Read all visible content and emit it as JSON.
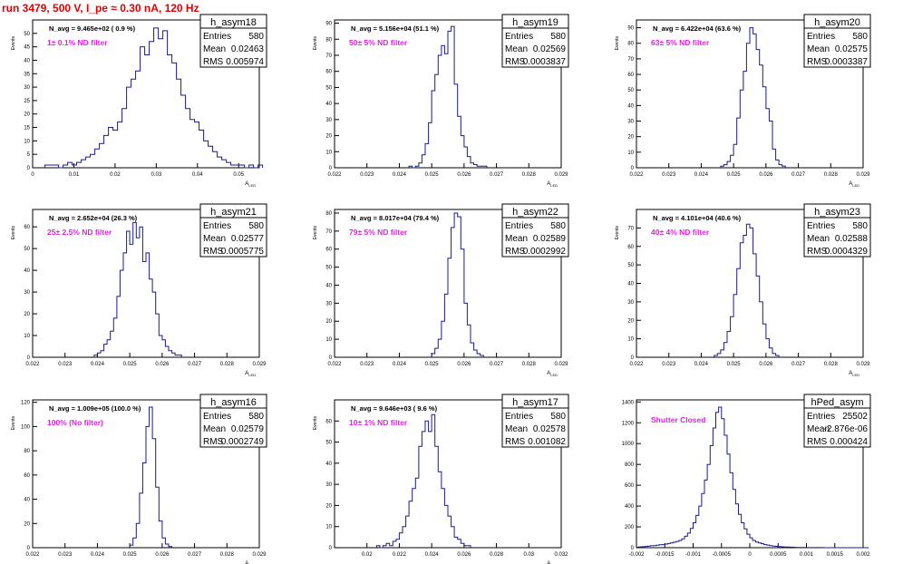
{
  "header": {
    "title": "run 3479,   500 V, I_pe ≈ 0.30 nA, 120 Hz"
  },
  "chart_data": [
    {
      "type": "bar",
      "name": "h_asym18",
      "nav": "N_avg = 9.465e+02 ( 0.9 %)",
      "note": "1± 0.1% ND filter",
      "stats": {
        "entries_label": "Entries",
        "entries": "580",
        "mean_label": "Mean",
        "mean": "0.02463",
        "rms_label": "RMS",
        "rms": "0.005974"
      },
      "xlabel": "A_LED",
      "ylabel": "Events",
      "xlim": [
        0,
        0.055
      ],
      "ylim": [
        0,
        55
      ],
      "xticks": [
        "0",
        "0.01",
        "0.02",
        "0.03",
        "0.04",
        "0.05"
      ],
      "yticks": [
        0,
        5,
        10,
        15,
        20,
        25,
        30,
        35,
        40,
        45,
        50
      ],
      "bins": {
        "lo": 0.003,
        "width": 0.0011,
        "counts": [
          1,
          1,
          1,
          0,
          1,
          2,
          1,
          2,
          3,
          4,
          5,
          7,
          9,
          12,
          15,
          14,
          17,
          22,
          30,
          33,
          36,
          45,
          42,
          47,
          52,
          48,
          51,
          42,
          39,
          33,
          27,
          22,
          18,
          17,
          14,
          10,
          8,
          6,
          4,
          3,
          2,
          1,
          1,
          1,
          0,
          1,
          0,
          1
        ]
      }
    },
    {
      "type": "bar",
      "name": "h_asym19",
      "nav": "N_avg = 5.156e+04 (51.1 %)",
      "note": "50± 5% ND filter",
      "stats": {
        "entries_label": "Entries",
        "entries": "580",
        "mean_label": "Mean",
        "mean": "0.02569",
        "rms_label": "RMS",
        "rms": "0.0003837"
      },
      "xlabel": "A_LED",
      "ylabel": "Events",
      "xlim": [
        0.022,
        0.029
      ],
      "ylim": [
        0,
        92
      ],
      "xticks": [
        "0.022",
        "0.023",
        "0.024",
        "0.025",
        "0.026",
        "0.027",
        "0.028",
        "0.029"
      ],
      "yticks": [
        0,
        10,
        20,
        30,
        40,
        50,
        60,
        70,
        80,
        90
      ],
      "bins": {
        "lo": 0.0243,
        "width": 0.0001,
        "counts": [
          1,
          0,
          1,
          3,
          8,
          15,
          28,
          48,
          58,
          70,
          76,
          71,
          85,
          88,
          52,
          32,
          20,
          13,
          7,
          3,
          2,
          1,
          1,
          1
        ]
      }
    },
    {
      "type": "bar",
      "name": "h_asym20",
      "nav": "N_avg = 6.422e+04 (63.6 %)",
      "note": "63± 5% ND filter",
      "stats": {
        "entries_label": "Entries",
        "entries": "580",
        "mean_label": "Mean",
        "mean": "0.02575",
        "rms_label": "RMS",
        "rms": "0.0003387"
      },
      "xlabel": "A_LED",
      "ylabel": "Events",
      "xlim": [
        0.022,
        0.029
      ],
      "ylim": [
        0,
        95
      ],
      "xticks": [
        "0.022",
        "0.023",
        "0.024",
        "0.025",
        "0.026",
        "0.027",
        "0.028",
        "0.029"
      ],
      "yticks": [
        0,
        10,
        20,
        30,
        40,
        50,
        60,
        70,
        80,
        90
      ],
      "bins": {
        "lo": 0.0246,
        "width": 0.0001,
        "counts": [
          1,
          2,
          4,
          8,
          15,
          32,
          50,
          62,
          80,
          90,
          86,
          76,
          66,
          52,
          38,
          30,
          12,
          5,
          2,
          1
        ]
      }
    },
    {
      "type": "bar",
      "name": "h_asym21",
      "nav": "N_avg = 2.652e+04 (26.3 %)",
      "note": "25± 2.5% ND filter",
      "stats": {
        "entries_label": "Entries",
        "entries": "580",
        "mean_label": "Mean",
        "mean": "0.02577",
        "rms_label": "RMS",
        "rms": "0.0005775"
      },
      "xlabel": "A_LED",
      "ylabel": "Events",
      "xlim": [
        0.022,
        0.029
      ],
      "ylim": [
        0,
        68
      ],
      "xticks": [
        "0.022",
        "0.023",
        "0.024",
        "0.025",
        "0.026",
        "0.027",
        "0.028",
        "0.029"
      ],
      "yticks": [
        0,
        10,
        20,
        30,
        40,
        50,
        60
      ],
      "bins": {
        "lo": 0.0239,
        "width": 0.0001,
        "counts": [
          1,
          2,
          3,
          6,
          8,
          12,
          18,
          28,
          40,
          48,
          58,
          52,
          62,
          55,
          60,
          44,
          48,
          36,
          30,
          20,
          10,
          8,
          5,
          3,
          2,
          1,
          1
        ]
      }
    },
    {
      "type": "bar",
      "name": "h_asym22",
      "nav": "N_avg = 8.017e+04 (79.4 %)",
      "note": "79± 5% ND filter",
      "stats": {
        "entries_label": "Entries",
        "entries": "580",
        "mean_label": "Mean",
        "mean": "0.02589",
        "rms_label": "RMS",
        "rms": "0.0002992"
      },
      "xlabel": "A_LED",
      "ylabel": "Events",
      "xlim": [
        0.022,
        0.029
      ],
      "ylim": [
        0,
        82
      ],
      "xticks": [
        "0.022",
        "0.023",
        "0.024",
        "0.025",
        "0.026",
        "0.027",
        "0.028",
        "0.029"
      ],
      "yticks": [
        0,
        10,
        20,
        30,
        40,
        50,
        60,
        70,
        80
      ],
      "bins": {
        "lo": 0.025,
        "width": 0.0001,
        "counts": [
          2,
          5,
          10,
          20,
          35,
          55,
          72,
          80,
          78,
          60,
          30,
          18,
          8,
          4,
          2,
          1
        ]
      }
    },
    {
      "type": "bar",
      "name": "h_asym23",
      "nav": "N_avg = 4.101e+04 (40.6 %)",
      "note": "40± 4% ND filter",
      "stats": {
        "entries_label": "Entries",
        "entries": "580",
        "mean_label": "Mean",
        "mean": "0.02588",
        "rms_label": "RMS",
        "rms": "0.0004329"
      },
      "xlabel": "A_LED",
      "ylabel": "Events",
      "xlim": [
        0.022,
        0.029
      ],
      "ylim": [
        0,
        80
      ],
      "xticks": [
        "0.022",
        "0.023",
        "0.024",
        "0.025",
        "0.026",
        "0.027",
        "0.028",
        "0.029"
      ],
      "yticks": [
        0,
        10,
        20,
        30,
        40,
        50,
        60,
        70
      ],
      "bins": {
        "lo": 0.0244,
        "width": 0.0001,
        "counts": [
          1,
          2,
          4,
          8,
          14,
          22,
          34,
          48,
          62,
          66,
          72,
          70,
          56,
          44,
          30,
          18,
          10,
          5,
          2,
          1
        ]
      }
    },
    {
      "type": "bar",
      "name": "h_asym16",
      "nav": "N_avg = 1.009e+05 (100.0 %)",
      "note": "100% (No filter)",
      "stats": {
        "entries_label": "Entries",
        "entries": "580",
        "mean_label": "Mean",
        "mean": "0.02579",
        "rms_label": "RMS",
        "rms": "0.0002749"
      },
      "xlabel": "A_LED",
      "ylabel": "Events",
      "xlim": [
        0.022,
        0.029
      ],
      "ylim": [
        0,
        122
      ],
      "xticks": [
        "0.022",
        "0.023",
        "0.024",
        "0.025",
        "0.026",
        "0.027",
        "0.028",
        "0.029"
      ],
      "yticks": [
        0,
        20,
        40,
        60,
        80,
        100,
        120
      ],
      "bins": {
        "lo": 0.025,
        "width": 0.0001,
        "counts": [
          2,
          8,
          20,
          45,
          70,
          100,
          116,
          90,
          50,
          22,
          8,
          3,
          1
        ]
      }
    },
    {
      "type": "bar",
      "name": "h_asym17",
      "nav": "N_avg = 9.646e+03 ( 9.6 %)",
      "note": "10± 1% ND filter",
      "stats": {
        "entries_label": "Entries",
        "entries": "580",
        "mean_label": "Mean",
        "mean": "0.02578",
        "rms_label": "RMS",
        "rms": "0.001082"
      },
      "xlabel": "A_LED",
      "ylabel": "Events",
      "xlim": [
        0.018,
        0.032
      ],
      "ylim": [
        0,
        70
      ],
      "xticks": [
        "0.02",
        "0.022",
        "0.024",
        "0.026",
        "0.028",
        "0.03",
        "0.032"
      ],
      "yticks": [
        0,
        10,
        20,
        30,
        40,
        50,
        60
      ],
      "bins": {
        "lo": 0.0206,
        "width": 0.0002,
        "counts": [
          1,
          0,
          1,
          2,
          1,
          3,
          4,
          7,
          10,
          15,
          22,
          28,
          33,
          48,
          55,
          60,
          55,
          63,
          48,
          36,
          28,
          20,
          15,
          10,
          5,
          4,
          2,
          1,
          1
        ]
      }
    },
    {
      "type": "bar",
      "name": "hPed_asym",
      "nav": "",
      "note": "Shutter Closed",
      "stats": {
        "entries_label": "Entries",
        "entries": "25502",
        "mean_label": "Mean",
        "mean": "-2.876e-06",
        "rms_label": "RMS",
        "rms": "0.000424"
      },
      "xlabel": "",
      "ylabel": "",
      "xlim": [
        -0.002,
        0.002
      ],
      "ylim": [
        0,
        1420
      ],
      "xticks": [
        "-0.002",
        "-0.0015",
        "-0.001",
        "-0.0005",
        "0",
        "0.0005",
        "0.001",
        "0.0015",
        "0.002"
      ],
      "yticks": [
        0,
        200,
        400,
        600,
        800,
        1000,
        1200,
        1400
      ],
      "bins": {
        "lo": -0.002,
        "width": 5e-05,
        "counts": [
          5,
          8,
          10,
          12,
          15,
          18,
          20,
          24,
          28,
          30,
          35,
          40,
          45,
          52,
          60,
          70,
          85,
          110,
          140,
          185,
          240,
          310,
          400,
          520,
          650,
          800,
          980,
          1150,
          1300,
          1350,
          1240,
          1080,
          900,
          720,
          560,
          420,
          320,
          240,
          180,
          130,
          95,
          70,
          55,
          45,
          38,
          30,
          25,
          20,
          16,
          13,
          11,
          9,
          7,
          6,
          5,
          4,
          3,
          3,
          2,
          2,
          1,
          1,
          1,
          1,
          1,
          1,
          0,
          0,
          0,
          0,
          0,
          0,
          0,
          0,
          0,
          0,
          0,
          0,
          0,
          0,
          0,
          0
        ]
      }
    }
  ]
}
